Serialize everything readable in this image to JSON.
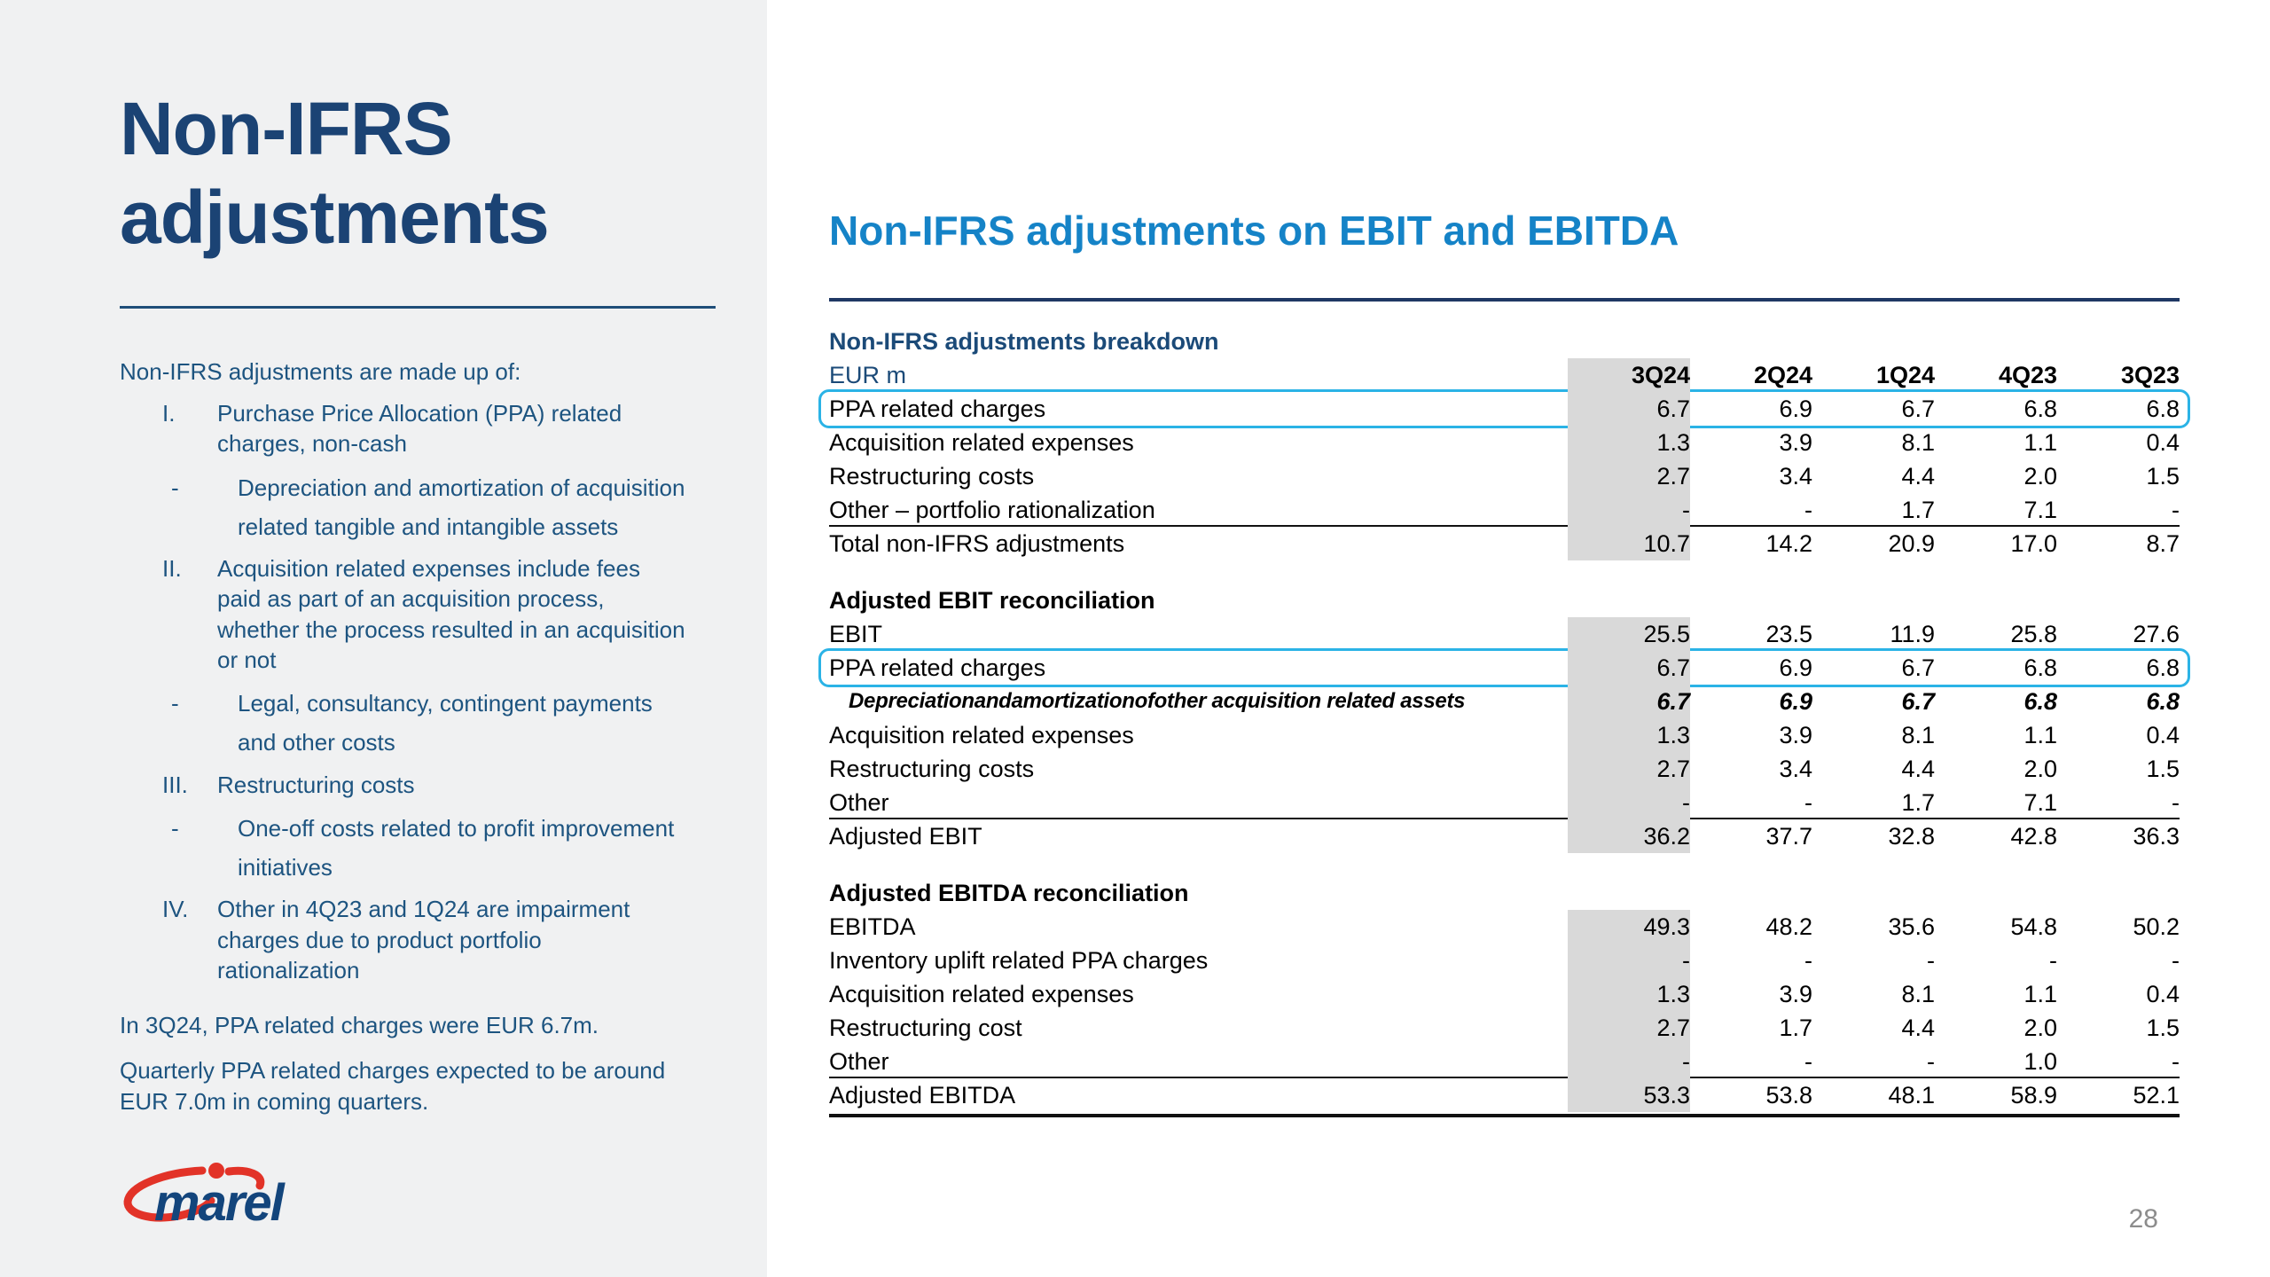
{
  "page_number": "28",
  "colors": {
    "accent_blue": "#1583c7",
    "navy": "#1b4a78",
    "title_navy": "#1b4374",
    "highlight_outline": "#2bb3e6",
    "column_highlight": "#d9d9d9",
    "panel_background": "#f0f1f2",
    "logo_red": "#e23328"
  },
  "left_panel": {
    "title_line1": "Non-IFRS",
    "title_line2": "adjustments",
    "intro": "Non-IFRS adjustments are made up of:",
    "sub_bullet_marker": "-",
    "items": [
      {
        "numeral": "I.",
        "lines": [
          "Purchase Price Allocation (PPA) related",
          "charges, non-cash"
        ],
        "sub": [
          {
            "lines": [
              "Depreciation and amortization of acquisition",
              "related tangible and intangible assets"
            ]
          }
        ]
      },
      {
        "numeral": "II.",
        "lines": [
          "Acquisition related expenses include fees",
          "paid as part of an acquisition process,",
          "whether the process resulted in an acquisition",
          "or not"
        ],
        "sub": [
          {
            "lines": [
              "Legal, consultancy, contingent payments",
              "and other costs"
            ]
          }
        ]
      },
      {
        "numeral": "III.",
        "lines": [
          "Restructuring costs"
        ],
        "sub": [
          {
            "lines": [
              "One-off costs related to profit improvement",
              "initiatives"
            ]
          }
        ]
      },
      {
        "numeral": "IV.",
        "lines": [
          "Other in 4Q23 and 1Q24 are impairment",
          "charges due to product portfolio",
          "rationalization"
        ],
        "sub": []
      }
    ],
    "footnote1": "In 3Q24, PPA related charges were EUR 6.7m.",
    "footnote2": "Quarterly PPA related charges expected to be around\nEUR 7.0m in coming quarters.",
    "logo_text": "marel"
  },
  "main": {
    "heading": "Non-IFRS adjustments on EBIT and EBITDA",
    "unit_label": "EUR m",
    "columns": [
      "3Q24",
      "2Q24",
      "1Q24",
      "4Q23",
      "3Q23"
    ],
    "tables": [
      {
        "title": "Non-IFRS adjustments breakdown",
        "title_style": "navy",
        "has_header": true,
        "rows": [
          {
            "label": "PPA related charges",
            "values": [
              "6.7",
              "6.9",
              "6.7",
              "6.8",
              "6.8"
            ],
            "style": "highlight"
          },
          {
            "label": "Acquisition related expenses",
            "values": [
              "1.3",
              "3.9",
              "8.1",
              "1.1",
              "0.4"
            ]
          },
          {
            "label": "Restructuring costs",
            "values": [
              "2.7",
              "3.4",
              "4.4",
              "2.0",
              "1.5"
            ]
          },
          {
            "label": "Other – portfolio rationalization",
            "values": [
              "-",
              "-",
              "1.7",
              "7.1",
              "-"
            ]
          },
          {
            "label": "Total non-IFRS adjustments",
            "values": [
              "10.7",
              "14.2",
              "20.9",
              "17.0",
              "8.7"
            ],
            "style": "total"
          }
        ]
      },
      {
        "title": "Adjusted EBIT reconciliation",
        "rows": [
          {
            "label": "EBIT",
            "values": [
              "25.5",
              "23.5",
              "11.9",
              "25.8",
              "27.6"
            ]
          },
          {
            "label": "PPA related charges",
            "values": [
              "6.7",
              "6.9",
              "6.7",
              "6.8",
              "6.8"
            ],
            "style": "highlight"
          },
          {
            "label": "Depreciationandamortizationofother acquisition related assets",
            "values": [
              "6.7",
              "6.9",
              "6.7",
              "6.8",
              "6.8"
            ],
            "style": "italic"
          },
          {
            "label": "Acquisition related expenses",
            "values": [
              "1.3",
              "3.9",
              "8.1",
              "1.1",
              "0.4"
            ]
          },
          {
            "label": "Restructuring costs",
            "values": [
              "2.7",
              "3.4",
              "4.4",
              "2.0",
              "1.5"
            ]
          },
          {
            "label": "Other",
            "values": [
              "-",
              "-",
              "1.7",
              "7.1",
              "-"
            ]
          },
          {
            "label": "Adjusted EBIT",
            "values": [
              "36.2",
              "37.7",
              "32.8",
              "42.8",
              "36.3"
            ],
            "style": "total"
          }
        ]
      },
      {
        "title": "Adjusted EBITDA reconciliation",
        "bottom_border": true,
        "rows": [
          {
            "label": "EBITDA",
            "values": [
              "49.3",
              "48.2",
              "35.6",
              "54.8",
              "50.2"
            ]
          },
          {
            "label": "Inventory uplift related PPA charges",
            "values": [
              "-",
              "-",
              "-",
              "-",
              "-"
            ]
          },
          {
            "label": "Acquisition related expenses",
            "values": [
              "1.3",
              "3.9",
              "8.1",
              "1.1",
              "0.4"
            ]
          },
          {
            "label": "Restructuring cost",
            "values": [
              "2.7",
              "1.7",
              "4.4",
              "2.0",
              "1.5"
            ]
          },
          {
            "label": "Other",
            "values": [
              "-",
              "-",
              "-",
              "1.0",
              "-"
            ]
          },
          {
            "label": "Adjusted EBITDA",
            "values": [
              "53.3",
              "53.8",
              "48.1",
              "58.9",
              "52.1"
            ],
            "style": "total"
          }
        ]
      }
    ]
  }
}
